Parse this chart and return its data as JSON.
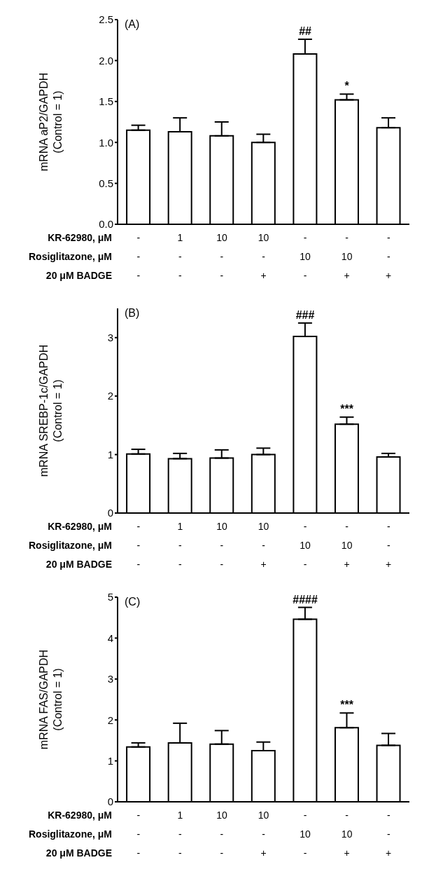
{
  "chart_data": [
    {
      "type": "bar",
      "title": "(A)",
      "ylabel": "mRNA aP2/GAPDH\n(Control = 1)",
      "categories": [
        "-\n-\n-",
        "1\n-\n-",
        "10\n-\n-",
        "10\n-\n+",
        "-\n10\n-",
        "-\n10\n+",
        "-\n-\n+"
      ],
      "values": [
        1.15,
        1.13,
        1.08,
        1.0,
        2.08,
        1.52,
        1.18
      ],
      "errors": [
        [
          1.15,
          1.21
        ],
        [
          1.13,
          1.3
        ],
        [
          1.08,
          1.25
        ],
        [
          1.0,
          1.1
        ],
        [
          2.08,
          2.26
        ],
        [
          1.52,
          1.59
        ],
        [
          1.18,
          1.3
        ]
      ],
      "colors": [
        "#ffffff",
        "#ffffff",
        "#ffffff",
        "#ffffff",
        "#ffffff",
        "#ffffff",
        "#ffffff"
      ],
      "ylim": [
        0,
        2.5
      ],
      "yticks": [
        {
          "value": 0,
          "label": "0.0"
        },
        0.5,
        {
          "value": 1,
          "label": "1.0"
        },
        1.5,
        {
          "value": 2,
          "label": "2.0"
        },
        2.5
      ],
      "annotations": [
        "KR-62980, μM",
        "Rosiglitazone, μM",
        "20 μM BADGE",
        {
          "text": "##",
          "x": "-\n10\n-",
          "y": 2.26
        },
        {
          "text": "*",
          "x": "-\n10\n+",
          "y": 1.59
        }
      ],
      "grid": false,
      "legend": false
    },
    {
      "type": "bar",
      "title": "(B)",
      "ylabel": "mRNA SREBP-1c/GAPDH\n(Control = 1)",
      "categories": [
        "-\n-\n-",
        "1\n-\n-",
        "10\n-\n-",
        "10\n-\n+",
        "-\n10\n-",
        "-\n10\n+",
        "-\n-\n+"
      ],
      "values": [
        1.01,
        0.93,
        0.94,
        1.0,
        3.02,
        1.52,
        0.96
      ],
      "errors": [
        [
          1.01,
          1.09
        ],
        [
          0.93,
          1.02
        ],
        [
          0.94,
          1.08
        ],
        [
          1.0,
          1.11
        ],
        [
          3.02,
          3.25
        ],
        [
          1.52,
          1.64
        ],
        [
          0.96,
          1.02
        ]
      ],
      "colors": [
        "#ffffff",
        "#ffffff",
        "#ffffff",
        "#ffffff",
        "#ffffff",
        "#ffffff",
        "#ffffff"
      ],
      "ylim": [
        0,
        3.5
      ],
      "yticks": [
        0,
        1,
        2,
        3
      ],
      "annotations": [
        "KR-62980, μM",
        "Rosiglitazone, μM",
        "20 μM BADGE",
        {
          "text": "###",
          "x": "-\n10\n-",
          "y": 3.25
        },
        {
          "text": "***",
          "x": "-\n10\n+",
          "y": 1.64
        }
      ],
      "grid": false,
      "legend": false
    },
    {
      "type": "bar",
      "title": "(C)",
      "ylabel": "mRNA FAS/GAPDH\n(Control = 1)",
      "categories": [
        "-\n-\n-",
        "1\n-\n-",
        "10\n-\n-",
        "10\n-\n+",
        "-\n10\n-",
        "-\n10\n+",
        "-\n-\n+"
      ],
      "values": [
        1.34,
        1.44,
        1.41,
        1.25,
        4.46,
        1.81,
        1.38
      ],
      "errors": [
        [
          1.34,
          1.44
        ],
        [
          1.44,
          1.92
        ],
        [
          1.41,
          1.74
        ],
        [
          1.25,
          1.46
        ],
        [
          4.46,
          4.75
        ],
        [
          1.81,
          2.17
        ],
        [
          1.38,
          1.67
        ]
      ],
      "colors": [
        "#ffffff",
        "#ffffff",
        "#ffffff",
        "#ffffff",
        "#ffffff",
        "#ffffff",
        "#ffffff"
      ],
      "ylim": [
        0,
        5
      ],
      "yticks": [
        0,
        1,
        2,
        3,
        4,
        5
      ],
      "annotations": [
        "KR-62980, μM",
        "Rosiglitazone, μM",
        "20 μM BADGE",
        {
          "text": "####",
          "x": "-\n10\n-",
          "y": 4.75
        },
        {
          "text": "***",
          "x": "-\n10\n+",
          "y": 2.17
        }
      ],
      "grid": false,
      "legend": false
    }
  ]
}
